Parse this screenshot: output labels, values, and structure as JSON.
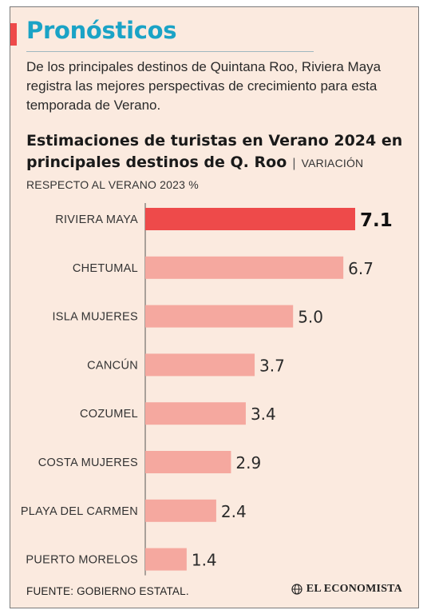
{
  "header": {
    "title": "Pronósticos",
    "intro": "De los principales destinos de Quintana Roo, Riviera Maya registra las mejores perspectivas de crecimiento para esta temporada de Verano."
  },
  "subhead": {
    "strong": "Estimaciones de turistas en Verano 2024 en principales destinos de Q. Roo",
    "separator": "|",
    "note": "VARIACIÓN RESPECTO AL VERANO 2023 %"
  },
  "chart_data": {
    "type": "bar",
    "orientation": "horizontal",
    "categories": [
      "RIVIERA MAYA",
      "CHETUMAL",
      "ISLA MUJERES",
      "CANCÚN",
      "COZUMEL",
      "COSTA MUJERES",
      "PLAYA DEL CARMEN",
      "PUERTO MORELOS"
    ],
    "values": [
      7.1,
      6.7,
      5.0,
      3.7,
      3.4,
      2.9,
      2.4,
      1.4
    ],
    "value_labels": [
      "7.1",
      "6.7",
      "5.0",
      "3.7",
      "3.4",
      "2.9",
      "2.4",
      "1.4"
    ],
    "highlight_index": 0,
    "colors": {
      "highlight": "#ee4a4a",
      "default": "#f5a89f",
      "axis": "#555555"
    },
    "xlim": [
      0,
      7.1
    ],
    "grid": false,
    "legend": "none"
  },
  "footer": {
    "source": "FUENTE: GOBIERNO ESTATAL.",
    "brand": "EL ECONOMISTA",
    "brand_icon": "globe-icon"
  }
}
